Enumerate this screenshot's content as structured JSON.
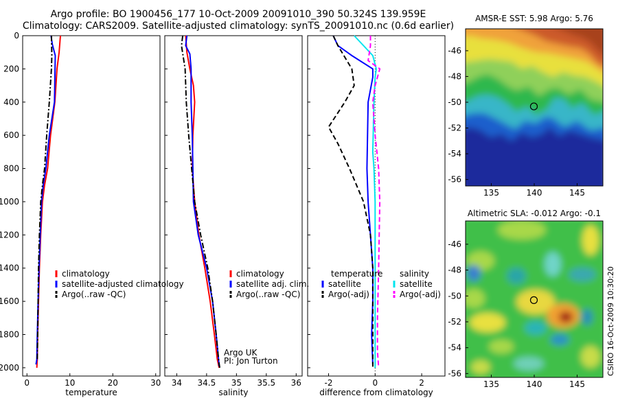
{
  "header": {
    "line1": "Argo profile: BO 1900456_177 10-Oct-2009 20091010_390 50.324S 139.959E",
    "line2": "Climatology: CARS2009. Satellite-adjusted climatology: synTS_20091010.nc (0.6d earlier)"
  },
  "footer_note": "CSIRO 16-Oct-2009 10:30:20",
  "colors": {
    "climatology": "#ff0000",
    "satellite": "#0000ff",
    "argo": "#000000",
    "sal_satellite": "#00e5ee",
    "sal_argo": "#ff00ff"
  },
  "chart_data": [
    {
      "type": "line",
      "xlabel": "temperature",
      "ylabel": "",
      "xlim": [
        -1,
        31
      ],
      "ylim": [
        2050,
        0
      ],
      "xticks": [
        "0",
        "10",
        "20",
        "30"
      ],
      "yticks": [
        "0",
        "200",
        "400",
        "600",
        "800",
        "1000",
        "1200",
        "1400",
        "1600",
        "1800",
        "2000"
      ],
      "legend_position": "lower-right",
      "series": [
        {
          "name": "climatology",
          "style": "solid",
          "color": "#ff0000",
          "x": [
            7.8,
            7.5,
            7.0,
            6.5,
            5.5,
            4.8,
            4.1,
            3.6,
            3.2,
            2.9,
            2.7,
            2.5,
            2.4,
            2.3
          ],
          "y": [
            0,
            100,
            200,
            400,
            600,
            800,
            900,
            1000,
            1200,
            1400,
            1600,
            1800,
            1950,
            2000
          ]
        },
        {
          "name": "satellite-adjusted climatology",
          "style": "solid",
          "color": "#0000ff",
          "x": [
            5.6,
            5.9,
            6.6,
            6.4,
            5.2,
            4.4,
            3.8,
            3.4,
            3.1,
            2.8,
            2.6,
            2.4,
            2.3,
            2.1
          ],
          "y": [
            0,
            50,
            120,
            400,
            600,
            800,
            900,
            1000,
            1200,
            1400,
            1600,
            1800,
            1950,
            1980
          ]
        },
        {
          "name": "Argo(..raw -QC)",
          "style": "dashdot",
          "color": "#000000",
          "x": [
            5.7,
            5.8,
            5.7,
            5.2,
            4.6,
            4.1,
            3.6,
            3.2,
            2.9,
            2.7,
            2.6,
            2.5,
            2.4
          ],
          "y": [
            0,
            120,
            200,
            400,
            600,
            800,
            900,
            1000,
            1200,
            1400,
            1600,
            1800,
            1950
          ]
        }
      ]
    },
    {
      "type": "line",
      "xlabel": "salinity",
      "ylabel": "",
      "xlim": [
        33.8,
        36.1
      ],
      "ylim": [
        2050,
        0
      ],
      "xticks": [
        "34",
        "34.5",
        "35",
        "35.5",
        "36"
      ],
      "legend_position": "lower-right",
      "annotations": [
        "Argo UK",
        "PI: Jon Turton"
      ],
      "series": [
        {
          "name": "climatology",
          "style": "solid",
          "color": "#ff0000",
          "x": [
            34.15,
            34.17,
            34.22,
            34.28,
            34.3,
            34.27,
            34.26,
            34.3,
            34.37,
            34.47,
            34.56,
            34.63,
            34.68,
            34.71
          ],
          "y": [
            0,
            100,
            200,
            300,
            400,
            600,
            800,
            1000,
            1200,
            1400,
            1600,
            1800,
            1950,
            2000
          ]
        },
        {
          "name": "satellite adj. clim.",
          "style": "solid",
          "color": "#0000ff",
          "x": [
            34.17,
            34.15,
            34.22,
            34.24,
            34.24,
            34.26,
            34.27,
            34.28,
            34.36,
            34.5,
            34.6,
            34.66,
            34.7,
            34.71
          ],
          "y": [
            0,
            60,
            110,
            200,
            400,
            600,
            800,
            1000,
            1200,
            1400,
            1600,
            1800,
            1950,
            1990
          ]
        },
        {
          "name": "Argo(..raw -QC)",
          "style": "dashdot",
          "color": "#000000",
          "x": [
            34.1,
            34.08,
            34.14,
            34.16,
            34.2,
            34.25,
            34.3,
            34.4,
            34.52,
            34.6,
            34.66,
            34.7,
            34.72
          ],
          "y": [
            0,
            60,
            200,
            400,
            600,
            800,
            1000,
            1200,
            1400,
            1600,
            1800,
            1950,
            2000
          ]
        }
      ]
    },
    {
      "type": "line",
      "xlabel": "difference from climatology",
      "ylabel": "",
      "xlim": [
        -2.9,
        3.0
      ],
      "ylim": [
        2050,
        0
      ],
      "xticks": [
        "-2",
        "0",
        "2"
      ],
      "reference_line_x": 0,
      "legend_position": "lower-right",
      "legend_headers": [
        "temperature",
        "salinity"
      ],
      "series": [
        {
          "name": "satellite",
          "group": "temperature",
          "style": "solid",
          "color": "#0000ff",
          "x": [
            -1.8,
            -1.6,
            -1.0,
            -0.1,
            -0.1,
            -0.3,
            -0.35,
            -0.3,
            -0.2,
            -0.1,
            -0.1,
            -0.15,
            -0.1
          ],
          "y": [
            0,
            60,
            120,
            200,
            250,
            400,
            800,
            1000,
            1200,
            1400,
            1600,
            1800,
            1980
          ]
        },
        {
          "name": "Argo(-adj)",
          "group": "temperature",
          "style": "dashed",
          "color": "#000000",
          "x": [
            -1.8,
            -1.6,
            -1.0,
            -0.9,
            -1.3,
            -2.0,
            -1.6,
            -1.1,
            -0.5,
            -0.2,
            -0.1,
            -0.1,
            -0.1
          ],
          "y": [
            0,
            60,
            200,
            300,
            400,
            550,
            650,
            800,
            1000,
            1200,
            1400,
            1700,
            2000
          ]
        },
        {
          "name": "satellite",
          "group": "salinity",
          "style": "solid",
          "color": "#00e5ee",
          "x": [
            -0.9,
            -0.5,
            -0.1,
            0.05,
            0.0,
            -0.05,
            -0.1,
            -0.05,
            0.0,
            0.0,
            0.0,
            0.0,
            0.0
          ],
          "y": [
            0,
            60,
            120,
            200,
            250,
            400,
            700,
            800,
            1000,
            1400,
            1700,
            1900,
            2000
          ]
        },
        {
          "name": "Argo(-adj)",
          "group": "salinity",
          "style": "dashed",
          "color": "#ff00ff",
          "x": [
            -0.2,
            -0.2,
            -0.3,
            0.2,
            0.0,
            -0.1,
            0.0,
            0.15,
            0.2,
            0.15,
            0.1,
            0.1,
            0.15
          ],
          "y": [
            0,
            60,
            150,
            200,
            300,
            400,
            600,
            800,
            1000,
            1400,
            1700,
            1900,
            2000
          ]
        }
      ]
    },
    {
      "type": "heatmap",
      "title": "AMSR-E SST: 5.98 Argo: 5.76",
      "xlim": [
        132,
        148
      ],
      "ylim": [
        -56.5,
        -44.3
      ],
      "xticks": [
        "135",
        "140",
        "145"
      ],
      "yticks": [
        "-46",
        "-48",
        "-50",
        "-52",
        "-54",
        "-56"
      ],
      "marker": {
        "lon": 139.959,
        "lat": -50.324
      }
    },
    {
      "type": "heatmap",
      "title": "Altimetric SLA: -0.012 Argo: -0.1",
      "xlim": [
        132,
        148
      ],
      "ylim": [
        -56.3,
        -44.2
      ],
      "xticks": [
        "135",
        "140",
        "145"
      ],
      "yticks": [
        "-46",
        "-48",
        "-50",
        "-52",
        "-54",
        "-56"
      ],
      "marker": {
        "lon": 139.959,
        "lat": -50.324
      }
    }
  ]
}
